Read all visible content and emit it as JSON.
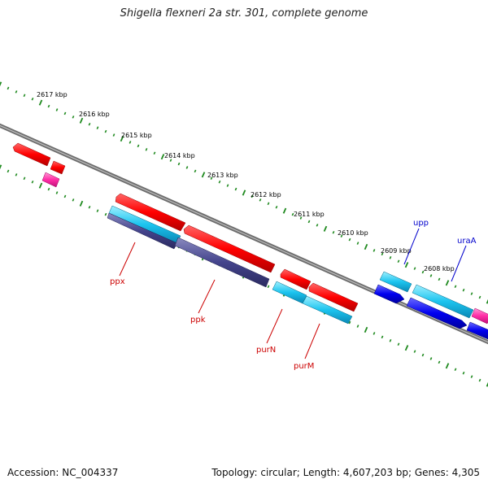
{
  "title": "Shigella flexneri 2a str. 301, complete genome",
  "footer": {
    "accession": "Accession: NC_004337",
    "summary": "Topology: circular; Length: 4,607,203 bp; Genes: 4,305"
  },
  "ruler": {
    "labels": [
      "2617 kbp",
      "2616 kbp",
      "2615 kbp",
      "2614 kbp",
      "2613 kbp",
      "2612 kbp",
      "2611 kbp",
      "2610 kbp",
      "2609 kbp",
      "2608 kbp"
    ]
  },
  "genes": [
    {
      "name": "ppx",
      "color": "#cc0000"
    },
    {
      "name": "ppk",
      "color": "#cc0000"
    },
    {
      "name": "purN",
      "color": "#cc0000"
    },
    {
      "name": "purM",
      "color": "#cc0000"
    },
    {
      "name": "upp",
      "color": "#0000cc"
    },
    {
      "name": "uraA",
      "color": "#0000cc"
    }
  ],
  "colors": {
    "backbone": "#777777",
    "tick": "#1f8a1f",
    "forward_gene": "#ff0000",
    "reverse_gene": "#00b8e8",
    "blue_gene": "#0000ee",
    "purple_gene": "#3a3a88",
    "pink_gene": "#ff33aa"
  }
}
